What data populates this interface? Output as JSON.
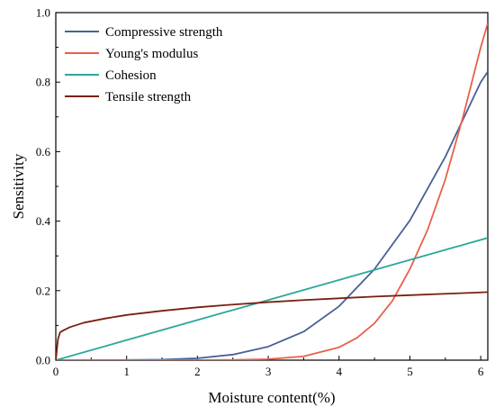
{
  "chart_data": {
    "type": "line",
    "xlabel": "Moisture content(%)",
    "ylabel": "Sensitivity",
    "xlim": [
      0,
      6.1
    ],
    "ylim": [
      0,
      1.0
    ],
    "xticks": [
      0,
      1,
      2,
      3,
      4,
      5,
      6
    ],
    "xtick_labels": [
      "0",
      "1",
      "2",
      "3",
      "4",
      "5",
      "6"
    ],
    "yticks": [
      0,
      0.2,
      0.4,
      0.6,
      0.8,
      1.0
    ],
    "ytick_labels": [
      "0.0",
      "0.2",
      "0.4",
      "0.6",
      "0.8",
      "1.0"
    ],
    "grid": false,
    "legend_position": "top-left",
    "series": [
      {
        "name": "Compressive strength",
        "color": "#4a5f96",
        "x": [
          0,
          0.5,
          1,
          1.5,
          2,
          2.5,
          3,
          3.5,
          4,
          4.5,
          5,
          5.5,
          6,
          6.1
        ],
        "y": [
          0,
          0.0001,
          0.0005,
          0.0017,
          0.0055,
          0.016,
          0.039,
          0.082,
          0.155,
          0.262,
          0.402,
          0.585,
          0.8,
          0.83
        ]
      },
      {
        "name": "Young's modulus",
        "color": "#e8604c",
        "x": [
          0,
          1,
          2,
          2.5,
          3,
          3.5,
          4,
          4.25,
          4.5,
          4.75,
          5,
          5.25,
          5.5,
          5.75,
          6,
          6.1
        ],
        "y": [
          0,
          0,
          0.0002,
          0.0008,
          0.003,
          0.011,
          0.037,
          0.064,
          0.106,
          0.17,
          0.262,
          0.375,
          0.52,
          0.7,
          0.9,
          0.97
        ]
      },
      {
        "name": "Cohesion",
        "color": "#2aa89a",
        "x": [
          0,
          6.1
        ],
        "y": [
          0,
          0.352
        ]
      },
      {
        "name": "Tensile strength",
        "color": "#7a1f10",
        "x": [
          0,
          0.03,
          0.06,
          0.1,
          0.2,
          0.4,
          0.7,
          1,
          1.5,
          2,
          2.5,
          3,
          3.5,
          4,
          4.5,
          5,
          5.5,
          6,
          6.1
        ],
        "y": [
          0,
          0.06,
          0.08,
          0.085,
          0.095,
          0.108,
          0.12,
          0.13,
          0.142,
          0.152,
          0.16,
          0.167,
          0.173,
          0.178,
          0.183,
          0.187,
          0.191,
          0.195,
          0.196
        ]
      }
    ]
  }
}
